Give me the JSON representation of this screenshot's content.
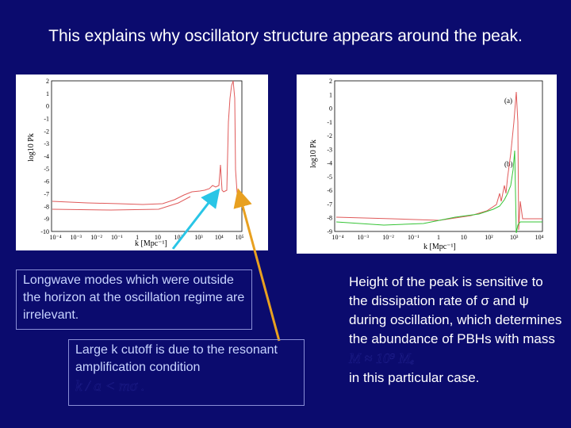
{
  "title": "This explains why oscillatory structure appears around the peak.",
  "left_plot": {
    "ylabel": "log10 Pk",
    "xlabel": "k [Mpc⁻¹]",
    "yticks": [
      "2",
      "1",
      "0",
      "-1",
      "-2",
      "-3",
      "-4",
      "-5",
      "-6",
      "-7",
      "-8",
      "-9",
      "-10"
    ],
    "xticks": [
      "10⁻⁴",
      "10⁻³",
      "10⁻²",
      "10⁻¹",
      "1",
      "10",
      "10²",
      "10³",
      "10⁴",
      "10⁵"
    ],
    "line_color": "#e05a5a"
  },
  "right_plot": {
    "ylabel": "log10 Pk",
    "xlabel": "k [Mpc⁻¹]",
    "yticks": [
      "2",
      "1",
      "0",
      "-1",
      "-2",
      "-3",
      "-4",
      "-5",
      "-6",
      "-7",
      "-8",
      "-9"
    ],
    "xticks": [
      "10⁻⁴",
      "10⁻³",
      "10⁻²",
      "10⁻¹",
      "1",
      "10",
      "10²",
      "10³",
      "10⁴"
    ],
    "label_a": "(a)",
    "label_b": "(b)",
    "series_colors": [
      "#e05a5a",
      "#36c436"
    ]
  },
  "callout_longwave": "Longwave modes which were outside the horizon at the oscillation regime are irrelevant.",
  "callout_cutoff": "Large k cutoff is due to the resonant amplification condition",
  "cutoff_formula": "k / a < mσ .",
  "note_text": "Height of the peak is sensitive to the dissipation rate of σ and ψ during oscillation, which determines the abundance of PBHs with mass",
  "note_formula": "M ≈ 10⁹ Mₑ",
  "note_suffix": "in this particular case.",
  "colors": {
    "background": "#0b0b6e",
    "box_border": "#8a8fd6",
    "arrow_cyan": "#29c5e6",
    "arrow_orange": "#e8a020"
  }
}
